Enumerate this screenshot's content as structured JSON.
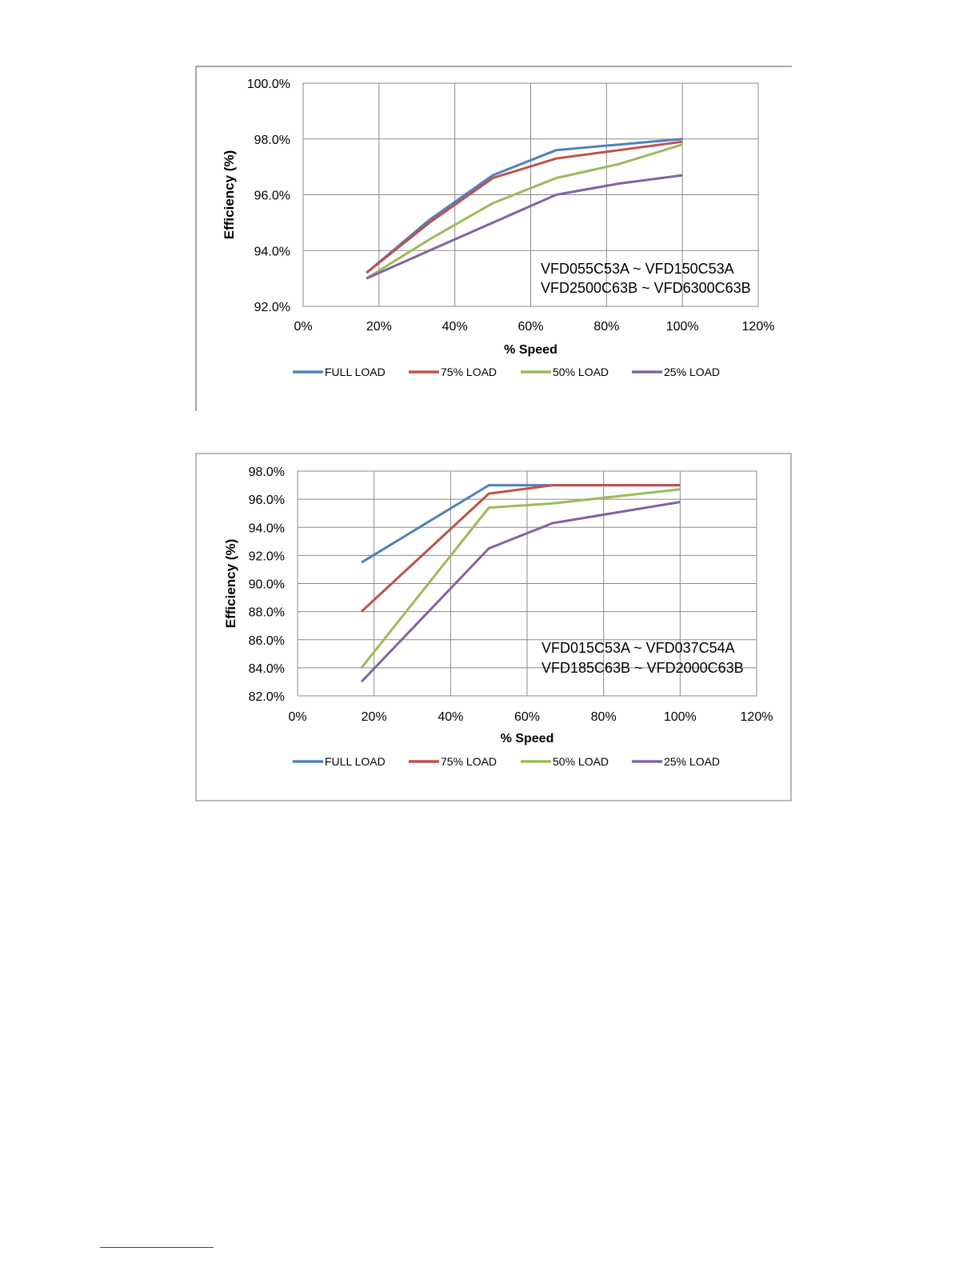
{
  "chart_data": [
    {
      "type": "line",
      "xlabel": "% Speed",
      "ylabel": "Efficiency (%)",
      "xlim": [
        0,
        120
      ],
      "ylim": [
        92,
        100
      ],
      "x_ticks": [
        "0%",
        "20%",
        "40%",
        "60%",
        "80%",
        "100%",
        "120%"
      ],
      "y_ticks": [
        "92.0%",
        "94.0%",
        "96.0%",
        "98.0%",
        "100.0%"
      ],
      "annotation": [
        "VFD055C53A ~ VFD150C53A",
        "VFD2500C63B ~ VFD6300C63B"
      ],
      "grid": true,
      "legend_position": "bottom",
      "series": [
        {
          "name": "FULL LOAD",
          "color": "#4f81bd",
          "x": [
            16.7,
            33.3,
            50,
            66.7,
            83.3,
            100
          ],
          "y": [
            93.2,
            95.1,
            96.7,
            97.6,
            97.8,
            98.0
          ]
        },
        {
          "name": "75% LOAD",
          "color": "#c0504d",
          "x": [
            16.7,
            33.3,
            50,
            66.7,
            83.3,
            100
          ],
          "y": [
            93.2,
            95.0,
            96.6,
            97.3,
            97.6,
            97.9
          ]
        },
        {
          "name": "50% LOAD",
          "color": "#9bbb59",
          "x": [
            16.7,
            33.3,
            50,
            66.7,
            83.3,
            100
          ],
          "y": [
            93.0,
            94.4,
            95.7,
            96.6,
            97.1,
            97.8
          ]
        },
        {
          "name": "25% LOAD",
          "color": "#8064a2",
          "x": [
            16.7,
            33.3,
            50,
            66.7,
            83.3,
            100
          ],
          "y": [
            93.0,
            94.0,
            95.0,
            96.0,
            96.4,
            96.7
          ]
        }
      ]
    },
    {
      "type": "line",
      "xlabel": "% Speed",
      "ylabel": "Efficiency (%)",
      "xlim": [
        0,
        120
      ],
      "ylim": [
        82,
        98
      ],
      "x_ticks": [
        "0%",
        "20%",
        "40%",
        "60%",
        "80%",
        "100%",
        "120%"
      ],
      "y_ticks": [
        "82.0%",
        "84.0%",
        "86.0%",
        "88.0%",
        "90.0%",
        "92.0%",
        "94.0%",
        "96.0%",
        "98.0%"
      ],
      "annotation": [
        "VFD015C53A ~ VFD037C54A",
        "VFD185C63B ~ VFD2000C63B"
      ],
      "grid": true,
      "legend_position": "bottom",
      "series": [
        {
          "name": "FULL LOAD",
          "color": "#4f81bd",
          "x": [
            16.7,
            50,
            66.7,
            100
          ],
          "y": [
            91.5,
            97.0,
            97.0,
            97.0
          ]
        },
        {
          "name": "75% LOAD",
          "color": "#c0504d",
          "x": [
            16.7,
            50,
            66.7,
            100
          ],
          "y": [
            88.0,
            96.4,
            97.0,
            97.0
          ]
        },
        {
          "name": "50% LOAD",
          "color": "#9bbb59",
          "x": [
            16.7,
            50,
            66.7,
            100
          ],
          "y": [
            84.0,
            95.4,
            95.7,
            96.7
          ]
        },
        {
          "name": "25% LOAD",
          "color": "#8064a2",
          "x": [
            16.7,
            50,
            66.7,
            100
          ],
          "y": [
            83.0,
            92.5,
            94.3,
            95.8
          ]
        }
      ]
    }
  ]
}
